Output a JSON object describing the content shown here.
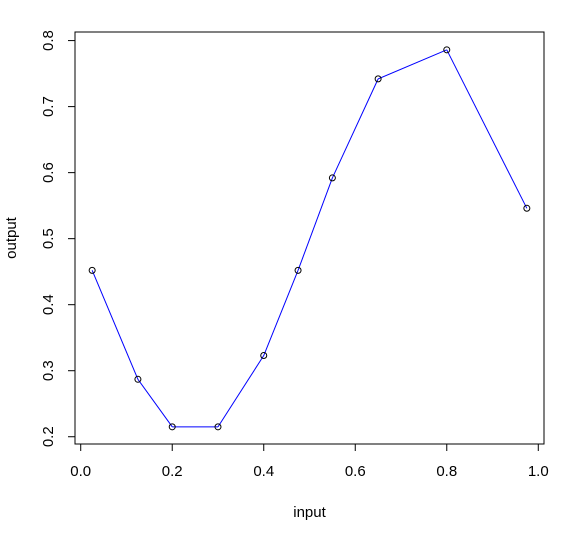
{
  "chart_data": {
    "type": "line",
    "title": "",
    "xlabel": "input",
    "ylabel": "output",
    "xlim": [
      -0.0125,
      1.0125
    ],
    "ylim": [
      0.189,
      0.813
    ],
    "xticks": [
      0.0,
      0.2,
      0.4,
      0.6,
      0.8,
      1.0
    ],
    "xtick_labels": [
      "0.0",
      "0.2",
      "0.4",
      "0.6",
      "0.8",
      "1.0"
    ],
    "yticks": [
      0.2,
      0.3,
      0.4,
      0.5,
      0.6,
      0.7,
      0.8
    ],
    "ytick_labels": [
      "0.2",
      "0.3",
      "0.4",
      "0.5",
      "0.6",
      "0.7",
      "0.8"
    ],
    "grid": false,
    "legend": "none",
    "series": [
      {
        "x": [
          0.025,
          0.125,
          0.2,
          0.3,
          0.4,
          0.475,
          0.55,
          0.65,
          0.8,
          0.975
        ],
        "y": [
          0.452,
          0.287,
          0.215,
          0.215,
          0.323,
          0.452,
          0.592,
          0.742,
          0.786,
          0.546
        ],
        "line_color": "#0000ff",
        "marker": "open-circle",
        "marker_color": "#000000"
      }
    ]
  }
}
